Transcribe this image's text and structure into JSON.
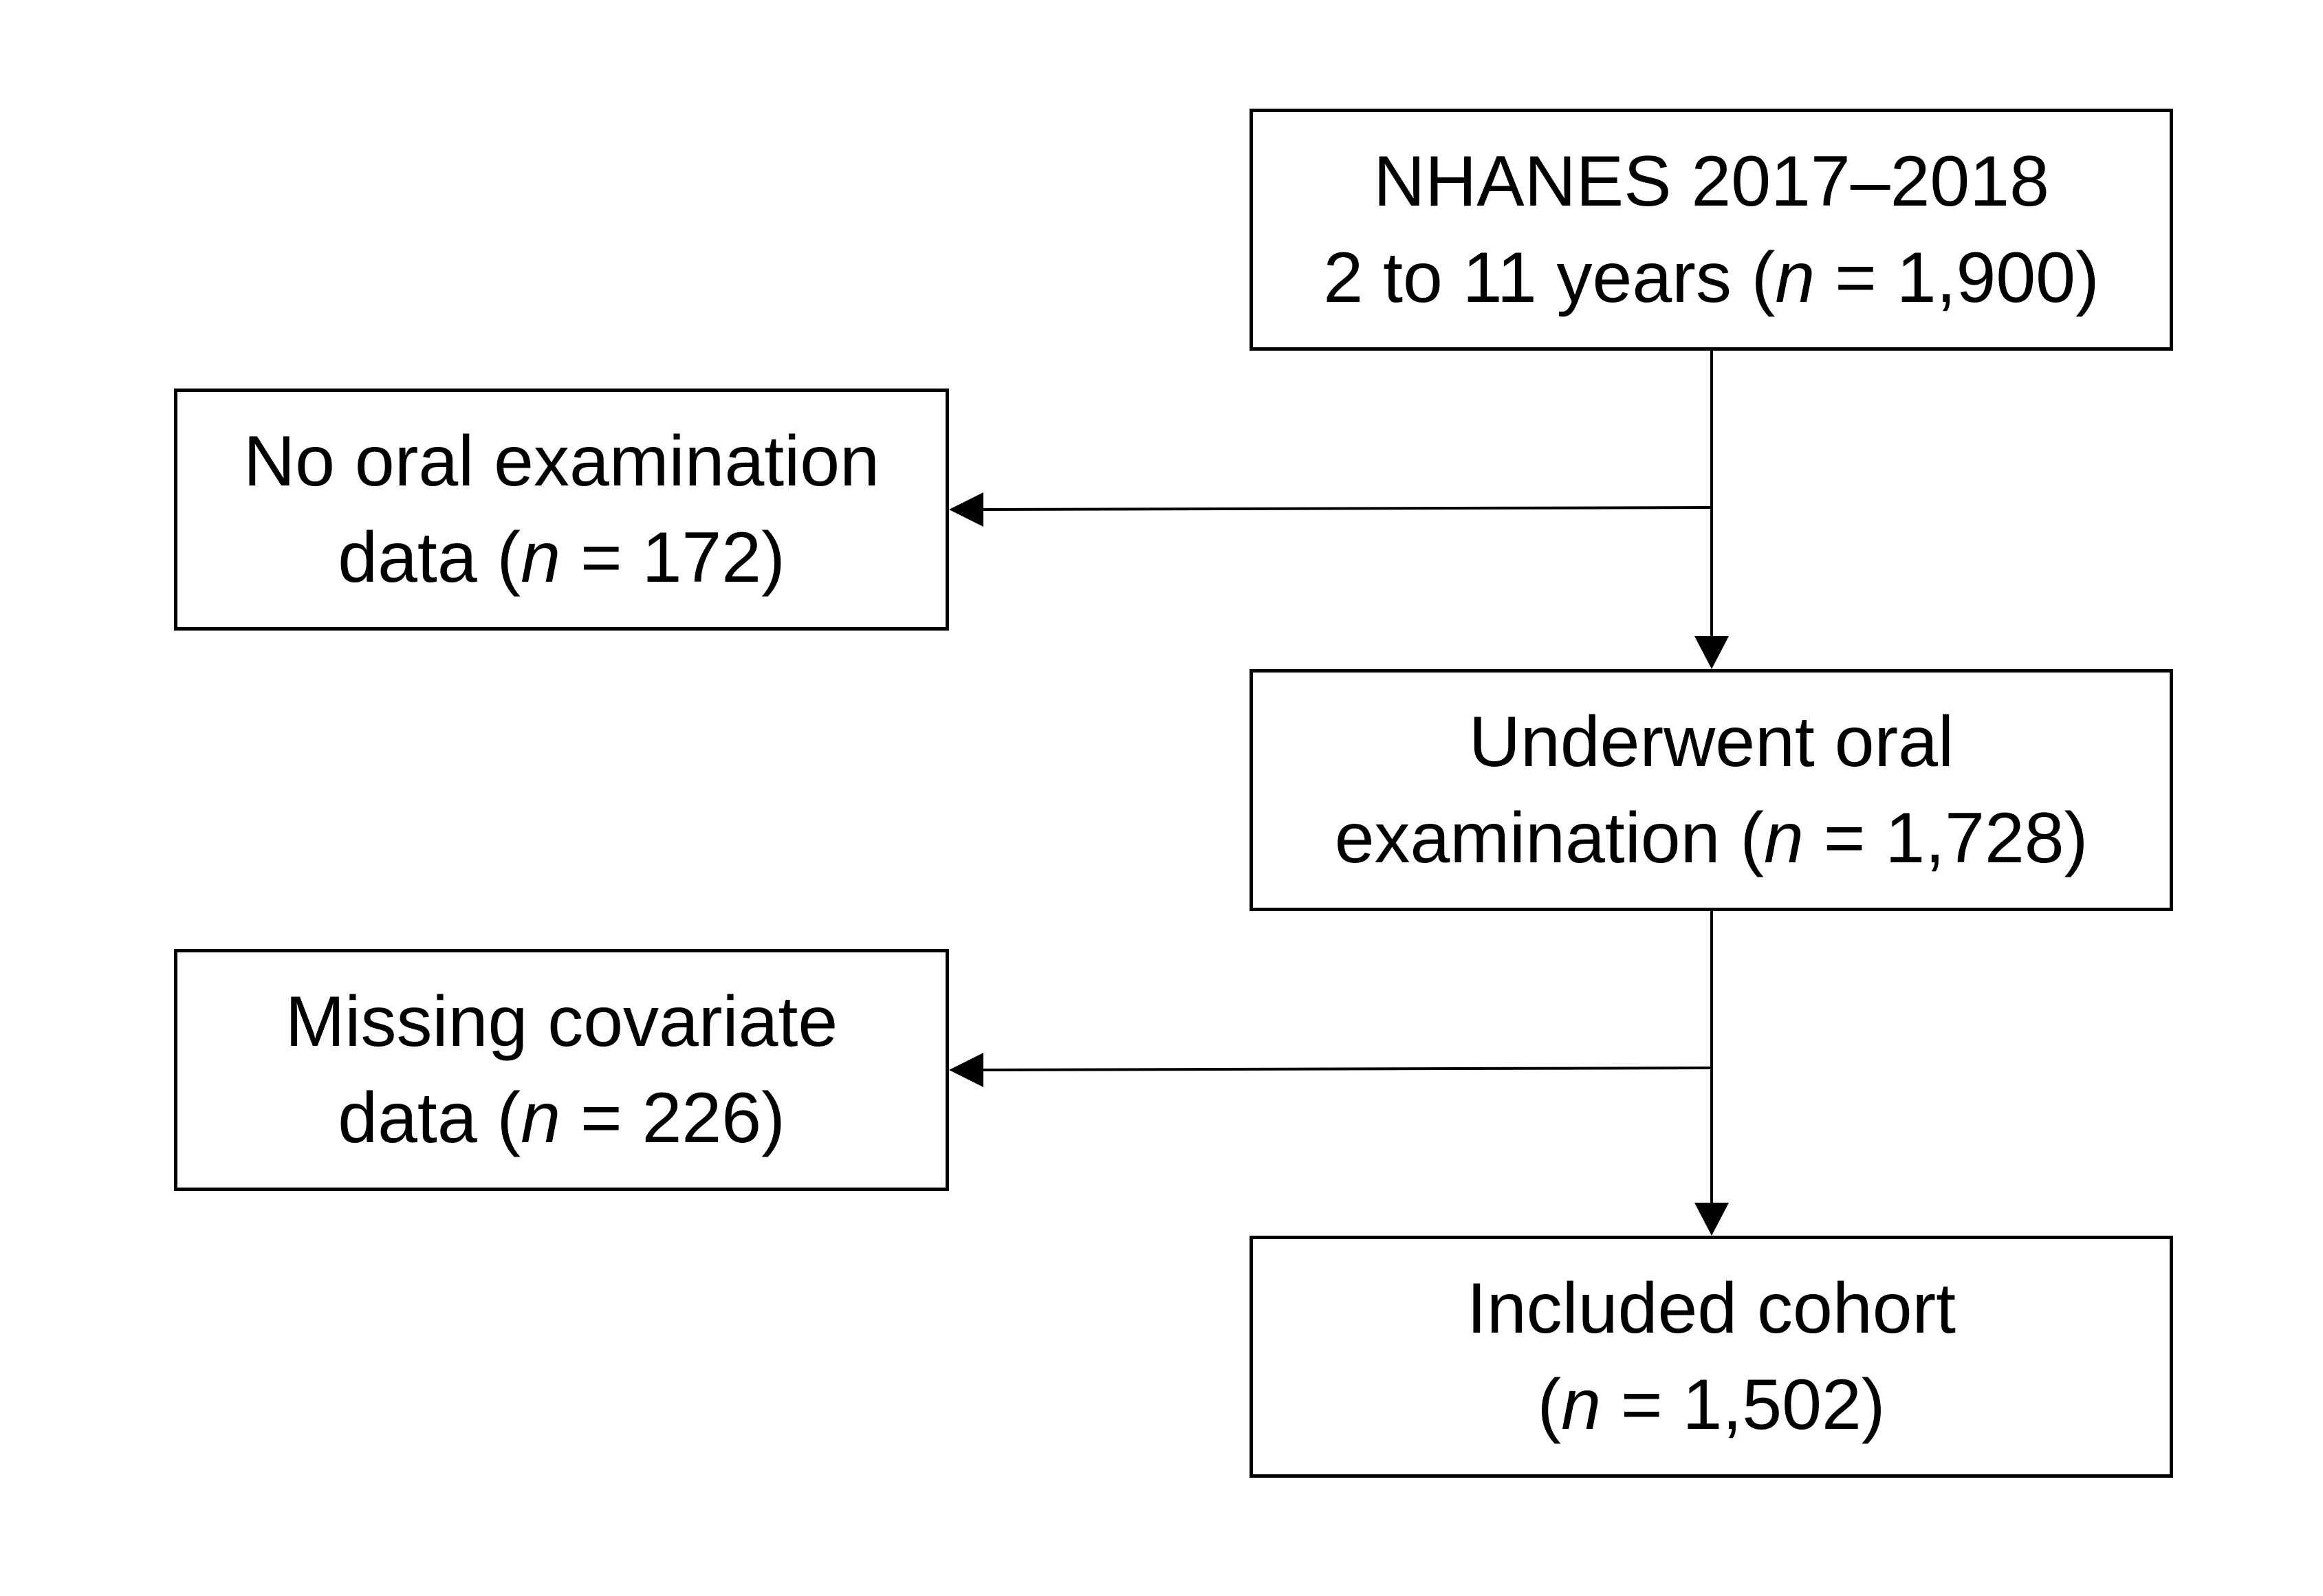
{
  "boxes": {
    "nhanes": {
      "line1": "NHANES 2017–2018",
      "line2_prefix": "2 to 11 years (",
      "n_symbol": "n",
      "line2_suffix": " = 1,900)"
    },
    "no_oral": {
      "line1": "No oral examination",
      "line2_prefix": "data (",
      "n_symbol": "n",
      "line2_suffix": " = 172)"
    },
    "underwent": {
      "line1": "Underwent oral",
      "line2_prefix": "examination (",
      "n_symbol": "n",
      "line2_suffix": " = 1,728)"
    },
    "missing": {
      "line1": "Missing covariate",
      "line2_prefix": "data (",
      "n_symbol": "n",
      "line2_suffix": " = 226)"
    },
    "included": {
      "line1": "Included cohort",
      "line2_prefix": "(",
      "n_symbol": "n",
      "line2_suffix": " = 1,502)"
    }
  },
  "colors": {
    "stroke": "#000000",
    "background": "#ffffff"
  }
}
